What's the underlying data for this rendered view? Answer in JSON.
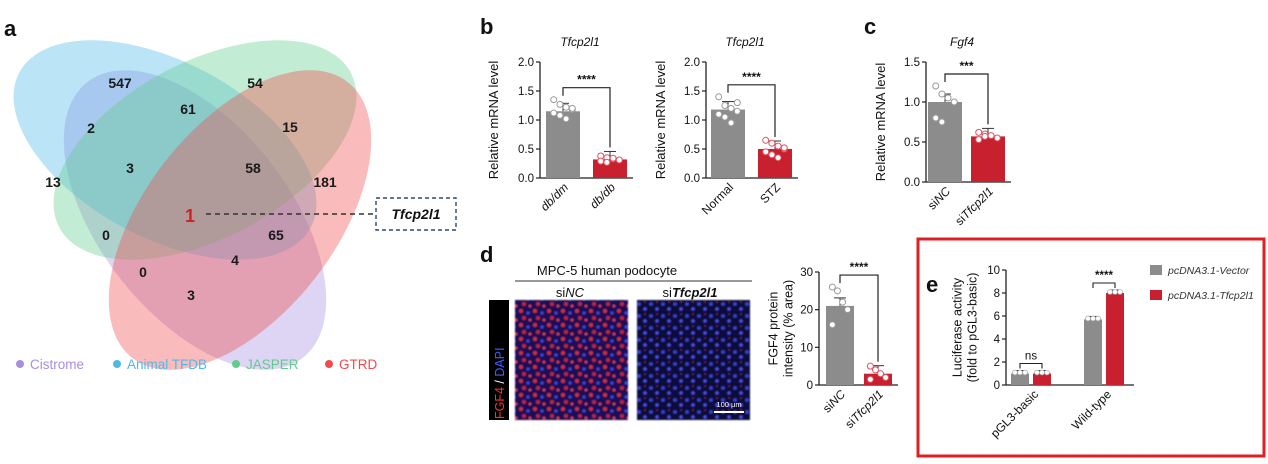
{
  "panel_labels": {
    "a": "a",
    "b": "b",
    "c": "c",
    "d": "d",
    "e": "e"
  },
  "venn": {
    "numbers": {
      "cistrome_only": "13",
      "animaltfdb_only": "547",
      "jasper_only": "54",
      "gtrd_only": "181",
      "cis_ani": "2",
      "ani_jas": "61",
      "jas_gtrd": "15",
      "cis_ani_jas": "3",
      "ani_jas_gtrd": "58",
      "all_four": "1",
      "ani_jas_gtrd_b": "65",
      "cis_jas": "0",
      "cis_gtrd_a": "0",
      "cis_jas_gtrd": "4",
      "cis_gtrd": "3"
    },
    "callout": "Tfcp2l1",
    "legend": [
      {
        "label": "Cistrome",
        "color": "#a98de0"
      },
      {
        "label": "Animal TFDB",
        "color": "#4fb8ea"
      },
      {
        "label": "JASPER",
        "color": "#62cc8e"
      },
      {
        "label": "GTRD",
        "color": "#f04b4b"
      }
    ]
  },
  "chart_data": [
    {
      "id": "b1",
      "type": "bar",
      "title": "Tfcp2l1",
      "ylabel": "Relative mRNA level",
      "categories": [
        "db/dm",
        "db/db"
      ],
      "values": [
        1.15,
        0.32
      ],
      "ylim": [
        0,
        2.0
      ],
      "yticks": [
        "0.0",
        "0.5",
        "1.0",
        "1.5",
        "2.0"
      ],
      "significance": "****",
      "points": [
        [
          1.35,
          1.27,
          1.22,
          1.18,
          1.12,
          1.08,
          1.02,
          1.2
        ],
        [
          0.38,
          0.35,
          0.33,
          0.31,
          0.29,
          0.27,
          0.34
        ]
      ]
    },
    {
      "id": "b2",
      "type": "bar",
      "title": "Tfcp2l1",
      "ylabel": "Relative mRNA level",
      "categories": [
        "Normal",
        "STZ"
      ],
      "values": [
        1.18,
        0.5
      ],
      "ylim": [
        0,
        2.0
      ],
      "yticks": [
        "0.0",
        "0.5",
        "1.0",
        "1.5",
        "2.0"
      ],
      "significance": "****",
      "points": [
        [
          1.4,
          1.25,
          1.2,
          1.15,
          1.1,
          1.05,
          0.95,
          1.3
        ],
        [
          0.65,
          0.6,
          0.55,
          0.5,
          0.45,
          0.4,
          0.35,
          0.52
        ]
      ]
    },
    {
      "id": "c",
      "type": "bar",
      "title": "Fgf4",
      "ylabel": "Relative mRNA level",
      "categories": [
        "siNC",
        "siTfcp2l1"
      ],
      "values": [
        1.0,
        0.57
      ],
      "ylim": [
        0,
        1.5
      ],
      "yticks": [
        "0.0",
        "0.5",
        "1.0",
        "1.5"
      ],
      "significance": "***",
      "points": [
        [
          1.2,
          1.1,
          1.05,
          1.0,
          0.8,
          0.75
        ],
        [
          0.62,
          0.6,
          0.58,
          0.55,
          0.53,
          0.57
        ]
      ]
    },
    {
      "id": "d",
      "type": "bar",
      "title": "",
      "ylabel": "FGF4 protein intensity (% area)",
      "categories": [
        "siNC",
        "siTfcp2l1"
      ],
      "values": [
        21,
        3
      ],
      "ylim": [
        0,
        30
      ],
      "yticks": [
        "0",
        "10",
        "20",
        "30"
      ],
      "significance": "****",
      "points": [
        [
          26,
          25,
          22,
          20,
          16
        ],
        [
          5,
          4,
          3,
          2,
          1.5
        ]
      ]
    },
    {
      "id": "e",
      "type": "bar",
      "title": "",
      "ylabel": "Luciferase activity (fold to pGL3-basic)",
      "categories": [
        "pGL3-basic",
        "Wild-type"
      ],
      "series": [
        {
          "name": "pcDNA3.1-Vector",
          "values": [
            1.0,
            5.7
          ],
          "color": "#8c8c8c"
        },
        {
          "name": "pcDNA3.1-Tfcp2l1",
          "values": [
            1.0,
            8.0
          ],
          "color": "#c8202e"
        }
      ],
      "ylim": [
        0,
        10
      ],
      "yticks": [
        "0",
        "2",
        "4",
        "6",
        "8",
        "10"
      ],
      "significance": [
        "ns",
        "****"
      ]
    }
  ],
  "micro": {
    "header": "MPC-5 human podocyte",
    "col1": "siNC",
    "col2": "siTfcp2l1",
    "stain_fgf4": "FGF4",
    "stain_sep": " / ",
    "stain_dapi": "DAPI",
    "scale": "100 μm"
  }
}
